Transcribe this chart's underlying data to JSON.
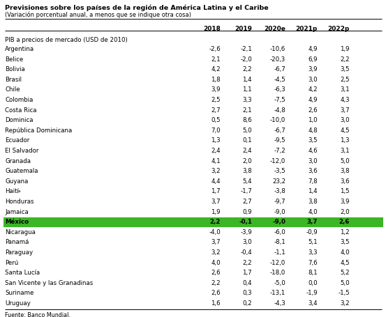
{
  "title": "Previsiones sobre los países de la región de América Latina y el Caribe",
  "subtitle": "(Variación porcentual anual, a menos que se indique otra cosa)",
  "section_header": "PIB a precios de mercado (USD de 2010)",
  "columns": [
    "2018",
    "2019",
    "2020e",
    "2021p",
    "2022p"
  ],
  "rows": [
    {
      "country": "Argentina",
      "superscript": "",
      "values": [
        "-2,6",
        "-2,1",
        "-10,6",
        "4,9",
        "1,9"
      ]
    },
    {
      "country": "Belice",
      "superscript": "",
      "values": [
        "2,1",
        "-2,0",
        "-20,3",
        "6,9",
        "2,2"
      ]
    },
    {
      "country": "Bolivia",
      "superscript": "",
      "values": [
        "4,2",
        "2,2",
        "-6,7",
        "3,9",
        "3,5"
      ]
    },
    {
      "country": "Brasil",
      "superscript": "",
      "values": [
        "1,8",
        "1,4",
        "-4,5",
        "3,0",
        "2,5"
      ]
    },
    {
      "country": "Chile",
      "superscript": "",
      "values": [
        "3,9",
        "1,1",
        "-6,3",
        "4,2",
        "3,1"
      ]
    },
    {
      "country": "Colombia",
      "superscript": "",
      "values": [
        "2,5",
        "3,3",
        "-7,5",
        "4,9",
        "4,3"
      ]
    },
    {
      "country": "Costa Rica",
      "superscript": "",
      "values": [
        "2,7",
        "2,1",
        "-4,8",
        "2,6",
        "3,7"
      ]
    },
    {
      "country": "Dominica",
      "superscript": "",
      "values": [
        "0,5",
        "8,6",
        "-10,0",
        "1,0",
        "3,0"
      ]
    },
    {
      "country": "República Dominicana",
      "superscript": "",
      "values": [
        "7,0",
        "5,0",
        "-6,7",
        "4,8",
        "4,5"
      ]
    },
    {
      "country": "Ecuador",
      "superscript": "",
      "values": [
        "1,3",
        "0,1",
        "-9,5",
        "3,5",
        "1,3"
      ]
    },
    {
      "country": "El Salvador",
      "superscript": "",
      "values": [
        "2,4",
        "2,4",
        "-7,2",
        "4,6",
        "3,1"
      ]
    },
    {
      "country": "Granada",
      "superscript": "",
      "values": [
        "4,1",
        "2,0",
        "-12,0",
        "3,0",
        "5,0"
      ]
    },
    {
      "country": "Guatemala",
      "superscript": "",
      "values": [
        "3,2",
        "3,8",
        "-3,5",
        "3,6",
        "3,8"
      ]
    },
    {
      "country": "Guyana",
      "superscript": "",
      "values": [
        "4,4",
        "5,4",
        "23,2",
        "7,8",
        "3,6"
      ]
    },
    {
      "country": "Haití",
      "superscript": "a",
      "values": [
        "1,7",
        "-1,7",
        "-3,8",
        "1,4",
        "1,5"
      ]
    },
    {
      "country": "Honduras",
      "superscript": "",
      "values": [
        "3,7",
        "2,7",
        "-9,7",
        "3,8",
        "3,9"
      ]
    },
    {
      "country": "Jamaica",
      "superscript": "",
      "values": [
        "1,9",
        "0,9",
        "-9,0",
        "4,0",
        "2,0"
      ]
    },
    {
      "country": "México",
      "superscript": "",
      "values": [
        "2,2",
        "-0,1",
        "-9,0",
        "3,7",
        "2,6"
      ],
      "highlight": true
    },
    {
      "country": "Nicaragua",
      "superscript": "",
      "values": [
        "-4,0",
        "-3,9",
        "-6,0",
        "-0,9",
        "1,2"
      ]
    },
    {
      "country": "Panamá",
      "superscript": "",
      "values": [
        "3,7",
        "3,0",
        "-8,1",
        "5,1",
        "3,5"
      ]
    },
    {
      "country": "Paraguay",
      "superscript": "",
      "values": [
        "3,2",
        "-0,4",
        "-1,1",
        "3,3",
        "4,0"
      ]
    },
    {
      "country": "Perú",
      "superscript": "",
      "values": [
        "4,0",
        "2,2",
        "-12,0",
        "7,6",
        "4,5"
      ]
    },
    {
      "country": "Santa Lucía",
      "superscript": "",
      "values": [
        "2,6",
        "1,7",
        "-18,0",
        "8,1",
        "5,2"
      ]
    },
    {
      "country": "San Vicente y las Granadinas",
      "superscript": "",
      "values": [
        "2,2",
        "0,4",
        "-5,0",
        "0,0",
        "5,0"
      ]
    },
    {
      "country": "Suriname",
      "superscript": "",
      "values": [
        "2,6",
        "0,3",
        "-13,1",
        "-1,9",
        "-1,5"
      ]
    },
    {
      "country": "Uruguay",
      "superscript": "",
      "values": [
        "1,6",
        "0,2",
        "-4,3",
        "3,4",
        "3,2"
      ]
    }
  ],
  "footer": "Fuente: Banco Mundial.",
  "highlight_color": "#3cb526",
  "highlight_text_color": "#000000",
  "background_color": "#ffffff",
  "figw": 5.53,
  "figh": 4.56,
  "dpi": 100
}
